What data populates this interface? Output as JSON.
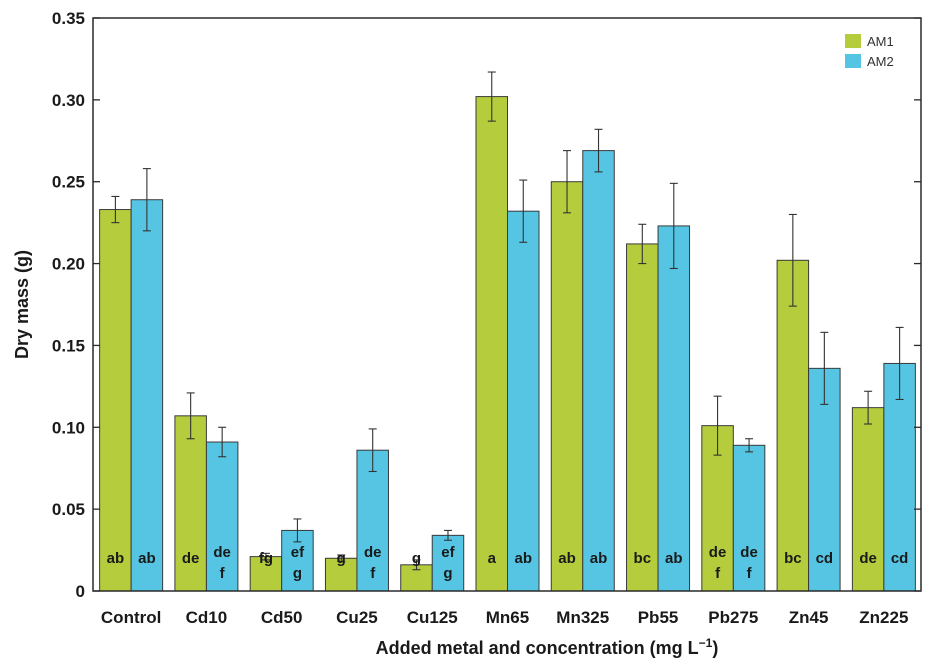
{
  "chart_data": {
    "type": "bar",
    "title": "",
    "xlabel": "Added metal and concentration (mg L",
    "xlabel_superscript": "−1",
    "xlabel_suffix": ")",
    "ylabel": "Dry mass (g)",
    "ylim": [
      0,
      0.35
    ],
    "yticks": [
      0,
      0.05,
      0.1,
      0.15,
      0.2,
      0.25,
      0.3,
      0.35
    ],
    "ytick_labels": [
      "0",
      "0.05",
      "0.10",
      "0.15",
      "0.20",
      "0.25",
      "0.30",
      "0.35"
    ],
    "grid": false,
    "legend_position": "top-right",
    "categories": [
      "Control",
      "Cd10",
      "Cd50",
      "Cu25",
      "Cu125",
      "Mn65",
      "Mn325",
      "Pb55",
      "Pb275",
      "Zn45",
      "Zn225"
    ],
    "series": [
      {
        "name": "AM1",
        "color": "#b5cc3c",
        "values": [
          0.233,
          0.107,
          0.021,
          0.02,
          0.016,
          0.302,
          0.25,
          0.212,
          0.101,
          0.202,
          0.112
        ],
        "errors": [
          0.008,
          0.014,
          0.002,
          0.002,
          0.003,
          0.015,
          0.019,
          0.012,
          0.018,
          0.028,
          0.01
        ],
        "letters": [
          [
            "ab"
          ],
          [
            "de"
          ],
          [
            "fg"
          ],
          [
            "g"
          ],
          [
            "g"
          ],
          [
            "a"
          ],
          [
            "ab"
          ],
          [
            "bc"
          ],
          [
            "de",
            "f"
          ],
          [
            "bc"
          ],
          [
            "de"
          ]
        ]
      },
      {
        "name": "AM2",
        "color": "#56c5e3",
        "values": [
          0.239,
          0.091,
          0.037,
          0.086,
          0.034,
          0.232,
          0.269,
          0.223,
          0.089,
          0.136,
          0.139
        ],
        "errors": [
          0.019,
          0.009,
          0.007,
          0.013,
          0.003,
          0.019,
          0.013,
          0.026,
          0.004,
          0.022,
          0.022
        ],
        "letters": [
          [
            "ab"
          ],
          [
            "de",
            "f"
          ],
          [
            "ef",
            "g"
          ],
          [
            "de",
            "f"
          ],
          [
            "ef",
            "g"
          ],
          [
            "ab"
          ],
          [
            "ab"
          ],
          [
            "ab"
          ],
          [
            "de",
            "f"
          ],
          [
            "cd"
          ],
          [
            "cd"
          ]
        ]
      }
    ]
  }
}
